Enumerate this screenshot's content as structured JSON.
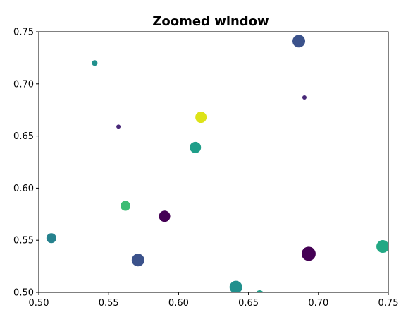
{
  "chart_data": {
    "type": "scatter",
    "title": "Zoomed window",
    "xlabel": "",
    "ylabel": "",
    "xlim": [
      0.5,
      0.75
    ],
    "ylim": [
      0.5,
      0.75
    ],
    "xticks": [
      "0.50",
      "0.55",
      "0.60",
      "0.65",
      "0.70",
      "0.75"
    ],
    "yticks": [
      "0.50",
      "0.55",
      "0.60",
      "0.65",
      "0.70",
      "0.75"
    ],
    "grid": false,
    "colormap": "viridis",
    "points": [
      {
        "x": 0.686,
        "y": 0.741,
        "size": 9,
        "color": "#3b528b"
      },
      {
        "x": 0.54,
        "y": 0.72,
        "size": 4,
        "color": "#21908d"
      },
      {
        "x": 0.69,
        "y": 0.687,
        "size": 3,
        "color": "#482878"
      },
      {
        "x": 0.616,
        "y": 0.668,
        "size": 8,
        "color": "#dde318"
      },
      {
        "x": 0.557,
        "y": 0.659,
        "size": 3,
        "color": "#482878"
      },
      {
        "x": 0.612,
        "y": 0.639,
        "size": 8,
        "color": "#1f9e89"
      },
      {
        "x": 0.562,
        "y": 0.583,
        "size": 7,
        "color": "#3dbc74"
      },
      {
        "x": 0.59,
        "y": 0.573,
        "size": 8,
        "color": "#440154"
      },
      {
        "x": 0.509,
        "y": 0.552,
        "size": 7,
        "color": "#26828e"
      },
      {
        "x": 0.746,
        "y": 0.544,
        "size": 9,
        "color": "#22a884"
      },
      {
        "x": 0.693,
        "y": 0.537,
        "size": 10,
        "color": "#440154"
      },
      {
        "x": 0.571,
        "y": 0.531,
        "size": 9,
        "color": "#3b528b"
      },
      {
        "x": 0.641,
        "y": 0.505,
        "size": 9,
        "color": "#21908d"
      },
      {
        "x": 0.658,
        "y": 0.498,
        "size": 6,
        "color": "#1f9e89"
      }
    ]
  }
}
